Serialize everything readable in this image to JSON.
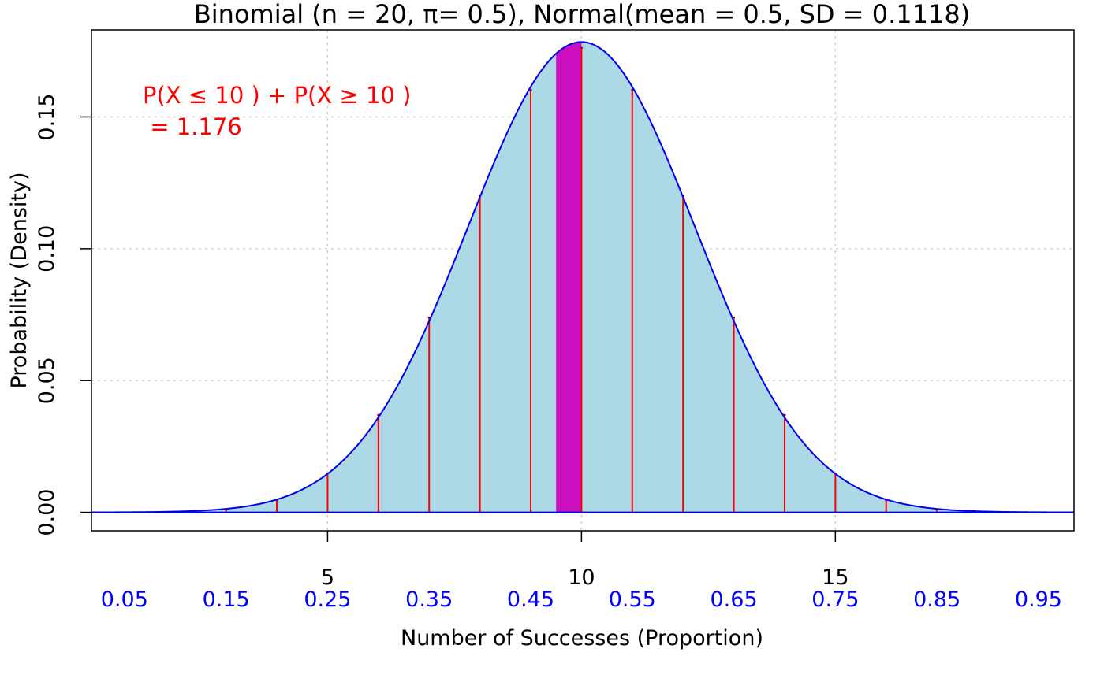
{
  "colors": {
    "curve": "#0000ee",
    "fill": "#add8e6",
    "spikes": "#ff0000",
    "highlight": "#cc10c0",
    "proportion_labels": "#0000ff",
    "annotation": "#ff0000",
    "grid": "#cccccc"
  },
  "chart_data": {
    "type": "line",
    "title": "Binomial (n = 20, π= 0.5), Normal(mean = 0.5,  SD = 0.1118)",
    "xlabel": "Number of Successes (Proportion)",
    "ylabel": "Probability (Density)",
    "xlim": [
      0.35,
      19.7
    ],
    "ylim": [
      -0.007,
      0.183
    ],
    "grid": true,
    "n": 20,
    "p": 0.5,
    "normal_mean": 0.5,
    "normal_sd": 0.1118,
    "highlight_x": 10,
    "x_ticks": [
      5,
      10,
      15
    ],
    "x_tick_labels": [
      "5",
      "10",
      "15"
    ],
    "y_ticks": [
      0.0,
      0.05,
      0.1,
      0.15
    ],
    "y_tick_labels": [
      "0.00",
      "0.05",
      "0.10",
      "0.15"
    ],
    "proportion_ticks": [
      0.05,
      0.15,
      0.25,
      0.35,
      0.45,
      0.55,
      0.65,
      0.75,
      0.85,
      0.95
    ],
    "proportion_tick_labels": [
      "0.05",
      "0.15",
      "0.25",
      "0.35",
      "0.45",
      "0.55",
      "0.65",
      "0.75",
      "0.85",
      "0.95"
    ],
    "binomial_pmf": {
      "x": [
        1,
        2,
        3,
        4,
        5,
        6,
        7,
        8,
        9,
        10,
        11,
        12,
        13,
        14,
        15,
        16,
        17,
        18,
        19
      ],
      "y": [
        2e-05,
        0.00018,
        0.00109,
        0.00462,
        0.01479,
        0.03696,
        0.07393,
        0.12013,
        0.16018,
        0.1762,
        0.16018,
        0.12013,
        0.07393,
        0.03696,
        0.01479,
        0.00462,
        0.00109,
        0.00018,
        2e-05
      ]
    },
    "annotation": {
      "line1": "P(X ≤ 10 ) + P(X ≥ 10 )",
      "line2": " = 1.176"
    }
  }
}
